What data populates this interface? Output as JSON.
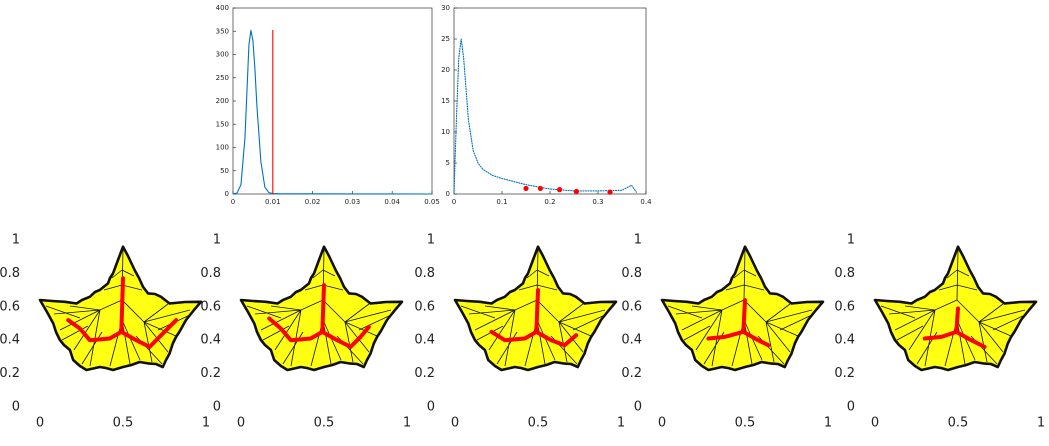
{
  "chart_data": [
    {
      "type": "line",
      "xlim": [
        0,
        0.05
      ],
      "ylim": [
        0,
        400
      ],
      "xticks": [
        0,
        0.01,
        0.02,
        0.03,
        0.04,
        0.05
      ],
      "yticks": [
        0,
        50,
        100,
        150,
        200,
        250,
        300,
        350,
        400
      ],
      "series": [
        {
          "color": "#0072bd",
          "linestyle": "solid",
          "x": [
            0,
            0.001,
            0.002,
            0.003,
            0.0035,
            0.004,
            0.0045,
            0.005,
            0.0055,
            0.006,
            0.007,
            0.008,
            0.009,
            0.01,
            0.012,
            0.02,
            0.03,
            0.04,
            0.05
          ],
          "y": [
            0,
            2,
            20,
            120,
            220,
            320,
            352,
            330,
            270,
            190,
            70,
            15,
            3,
            1,
            0.5,
            0.3,
            0.2,
            0.1,
            0
          ]
        },
        {
          "color": "#ff0000",
          "linestyle": "solid",
          "x": [
            0.01,
            0.01
          ],
          "y": [
            0,
            352
          ]
        }
      ]
    },
    {
      "type": "line",
      "xlim": [
        0,
        0.4
      ],
      "ylim": [
        0,
        30
      ],
      "xticks": [
        0,
        0.1,
        0.2,
        0.3,
        0.4
      ],
      "yticks": [
        0,
        5,
        10,
        15,
        20,
        25,
        30
      ],
      "series": [
        {
          "color": "#0072bd",
          "linestyle": "dotted",
          "x": [
            0,
            0.005,
            0.01,
            0.015,
            0.02,
            0.03,
            0.04,
            0.05,
            0.06,
            0.08,
            0.1,
            0.15,
            0.2,
            0.25,
            0.3,
            0.35,
            0.37,
            0.38
          ],
          "y": [
            0,
            12,
            22,
            25,
            22,
            12,
            7,
            5,
            4,
            3,
            2.5,
            1.5,
            0.8,
            0.5,
            0.5,
            0.6,
            1.4,
            0.3
          ]
        },
        {
          "color": "#ff0000",
          "linestyle": "none",
          "marker": "o",
          "x": [
            0.15,
            0.18,
            0.22,
            0.255,
            0.325
          ],
          "y": [
            0.9,
            0.9,
            0.7,
            0.4,
            0.3
          ]
        }
      ]
    },
    {
      "type": "line",
      "xlim": [
        0,
        1
      ],
      "ylim": [
        0,
        1
      ],
      "xticks": [
        0,
        0.5,
        1
      ],
      "yticks": [
        0,
        0.2,
        0.4,
        0.6,
        0.8,
        1
      ],
      "series": [
        {
          "color": "#ff0000",
          "linestyle": "solid",
          "x": [
            0.5,
            0.49
          ],
          "y": [
            0.77,
            0.45
          ]
        },
        {
          "color": "#ff0000",
          "linestyle": "solid",
          "x": [
            0.17,
            0.24,
            0.3,
            0.42,
            0.49,
            0.58,
            0.66,
            0.74,
            0.82
          ],
          "y": [
            0.52,
            0.47,
            0.4,
            0.41,
            0.45,
            0.4,
            0.36,
            0.44,
            0.52
          ]
        }
      ]
    },
    {
      "type": "line",
      "xlim": [
        0,
        1
      ],
      "ylim": [
        0,
        1
      ],
      "xticks": [
        0,
        0.5,
        1
      ],
      "yticks": [
        0,
        0.2,
        0.4,
        0.6,
        0.8,
        1
      ],
      "series": [
        {
          "color": "#ff0000",
          "linestyle": "solid",
          "x": [
            0.5,
            0.49
          ],
          "y": [
            0.73,
            0.45
          ]
        },
        {
          "color": "#ff0000",
          "linestyle": "solid",
          "x": [
            0.17,
            0.24,
            0.3,
            0.42,
            0.49,
            0.58,
            0.66,
            0.72,
            0.77
          ],
          "y": [
            0.53,
            0.47,
            0.4,
            0.41,
            0.45,
            0.4,
            0.36,
            0.42,
            0.48
          ]
        }
      ]
    },
    {
      "type": "line",
      "xlim": [
        0,
        1
      ],
      "ylim": [
        0,
        1
      ],
      "xticks": [
        0,
        0.5,
        1
      ],
      "yticks": [
        0,
        0.2,
        0.4,
        0.6,
        0.8,
        1
      ],
      "series": [
        {
          "color": "#ff0000",
          "linestyle": "solid",
          "x": [
            0.5,
            0.49
          ],
          "y": [
            0.7,
            0.45
          ]
        },
        {
          "color": "#ff0000",
          "linestyle": "solid",
          "x": [
            0.22,
            0.3,
            0.42,
            0.49,
            0.58,
            0.66,
            0.73
          ],
          "y": [
            0.45,
            0.4,
            0.41,
            0.45,
            0.4,
            0.37,
            0.43
          ]
        }
      ]
    },
    {
      "type": "line",
      "xlim": [
        0,
        1
      ],
      "ylim": [
        0,
        1
      ],
      "xticks": [
        0,
        0.5,
        1
      ],
      "yticks": [
        0,
        0.2,
        0.4,
        0.6,
        0.8,
        1
      ],
      "series": [
        {
          "color": "#ff0000",
          "linestyle": "solid",
          "x": [
            0.5,
            0.49
          ],
          "y": [
            0.64,
            0.45
          ]
        },
        {
          "color": "#ff0000",
          "linestyle": "solid",
          "x": [
            0.28,
            0.38,
            0.49,
            0.58,
            0.64
          ],
          "y": [
            0.41,
            0.42,
            0.45,
            0.4,
            0.37
          ]
        }
      ]
    },
    {
      "type": "line",
      "xlim": [
        0,
        1
      ],
      "ylim": [
        0,
        1
      ],
      "xticks": [
        0,
        0.5,
        1
      ],
      "yticks": [
        0,
        0.2,
        0.4,
        0.6,
        0.8,
        1
      ],
      "series": [
        {
          "color": "#ff0000",
          "linestyle": "solid",
          "x": [
            0.5,
            0.49
          ],
          "y": [
            0.59,
            0.45
          ]
        },
        {
          "color": "#ff0000",
          "linestyle": "solid",
          "x": [
            0.3,
            0.4,
            0.49,
            0.58,
            0.66
          ],
          "y": [
            0.41,
            0.42,
            0.45,
            0.4,
            0.36
          ]
        }
      ]
    }
  ]
}
